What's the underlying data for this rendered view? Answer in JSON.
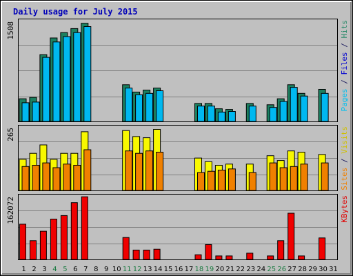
{
  "chart_data": {
    "type": "bar",
    "title": "Daily usage for July 2015",
    "days": [
      "1",
      "2",
      "3",
      "4",
      "5",
      "6",
      "7",
      "8",
      "9",
      "10",
      "11",
      "12",
      "13",
      "14",
      "15",
      "16",
      "17",
      "18",
      "19",
      "20",
      "21",
      "22",
      "23",
      "24",
      "25",
      "26",
      "27",
      "28",
      "29",
      "30",
      "31"
    ],
    "weekend_days": [
      "4",
      "5",
      "11",
      "12",
      "18",
      "19",
      "25",
      "26"
    ],
    "panels": [
      {
        "id": "hits",
        "max_label": "1508",
        "ymax": 1508,
        "legend": [
          {
            "text": "Pages",
            "color": "#00c0f0"
          },
          {
            "text": " / ",
            "color": "#202060"
          },
          {
            "text": "Files",
            "color": "#0000d0"
          },
          {
            "text": " / ",
            "color": "#202060"
          },
          {
            "text": "Hits",
            "color": "#2a8a6a"
          }
        ],
        "series": [
          {
            "name": "Hits",
            "color": "#1c8060",
            "values": [
              340,
              360,
              1000,
              1250,
              1330,
              1390,
              1470,
              0,
              0,
              0,
              550,
              440,
              470,
              500,
              0,
              0,
              0,
              270,
              270,
              190,
              180,
              0,
              270,
              0,
              250,
              340,
              550,
              420,
              0,
              480,
              0
            ]
          },
          {
            "name": "Pages",
            "color": "#00b8f0",
            "values": [
              280,
              290,
              960,
              1190,
              1270,
              1330,
              1420,
              0,
              0,
              0,
              500,
              400,
              420,
              460,
              0,
              0,
              0,
              230,
              230,
              140,
              150,
              0,
              230,
              0,
              210,
              300,
              510,
              380,
              0,
              420,
              0
            ]
          }
        ]
      },
      {
        "id": "visits",
        "max_label": "265",
        "ymax": 265,
        "legend": [
          {
            "text": "Sites",
            "color": "#f08000"
          },
          {
            "text": " / ",
            "color": "#202060"
          },
          {
            "text": "Visits",
            "color": "#d0c000"
          }
        ],
        "series": [
          {
            "name": "Visits",
            "color": "#f8f800",
            "values": [
              130,
              155,
              190,
              130,
              155,
              155,
              245,
              0,
              0,
              0,
              250,
              225,
              220,
              255,
              0,
              0,
              0,
              135,
              120,
              105,
              110,
              0,
              110,
              0,
              145,
              125,
              165,
              160,
              0,
              150,
              0
            ]
          },
          {
            "name": "Sites",
            "color": "#f08000",
            "values": [
              100,
              105,
              115,
              95,
              110,
              105,
              170,
              0,
              0,
              0,
              165,
              155,
              165,
              160,
              0,
              0,
              0,
              75,
              80,
              85,
              90,
              0,
              75,
              0,
              115,
              95,
              100,
              110,
              0,
              115,
              0
            ]
          }
        ]
      },
      {
        "id": "kbytes",
        "max_label": "162072",
        "ymax": 162072,
        "legend": [
          {
            "text": "KBytes",
            "color": "#e00000"
          }
        ],
        "series": [
          {
            "name": "KBytes",
            "color": "#f00000",
            "values": [
              90000,
              48000,
              72000,
              103000,
              112000,
              145000,
              160000,
              0,
              0,
              0,
              56000,
              24000,
              24000,
              26000,
              0,
              0,
              0,
              12000,
              38000,
              9000,
              9000,
              0,
              16000,
              0,
              9000,
              48000,
              118000,
              9000,
              0,
              55000,
              0
            ]
          }
        ]
      }
    ]
  }
}
